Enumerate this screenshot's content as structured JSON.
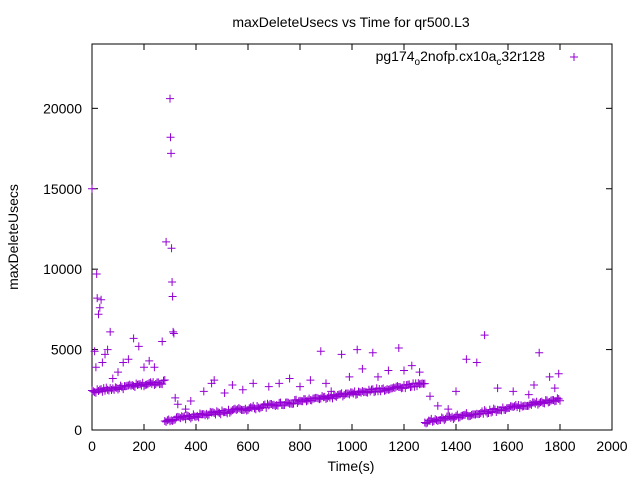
{
  "chart_data": {
    "type": "scatter",
    "title": "maxDeleteUsecs vs Time for qr500.L3",
    "xlabel": "Time(s)",
    "ylabel": "maxDeleteUsecs",
    "xlim": [
      0,
      2000
    ],
    "ylim": [
      0,
      24000
    ],
    "x_ticks": [
      "0",
      "200",
      "400",
      "600",
      "800",
      "1000",
      "1200",
      "1400",
      "1600",
      "1800",
      "2000"
    ],
    "y_ticks": [
      "0",
      "5000",
      "10000",
      "15000",
      "20000"
    ],
    "grid": false,
    "legend_position": "top-right",
    "legend": {
      "base": "pg174",
      "sub1": "o",
      "mid": "2nofp.cx10a",
      "sub2": "c",
      "tail": "32r128"
    },
    "marker": "+",
    "color": "#9400d3",
    "series": [
      {
        "name": "pg174_o2nofp.cx10a_c32r128",
        "trend": [
          {
            "x": [
              0,
              280
            ],
            "y": [
              2400,
              3000
            ]
          },
          {
            "x": [
              280,
              1280
            ],
            "y": [
              600,
              2900
            ]
          },
          {
            "x": [
              1280,
              1800
            ],
            "y": [
              500,
              1900
            ]
          }
        ],
        "outliers": [
          {
            "x": 0,
            "y": 15000
          },
          {
            "x": 10,
            "y": 4900
          },
          {
            "x": 15,
            "y": 3900
          },
          {
            "x": 18,
            "y": 9700
          },
          {
            "x": 20,
            "y": 8200
          },
          {
            "x": 25,
            "y": 7200
          },
          {
            "x": 30,
            "y": 7600
          },
          {
            "x": 35,
            "y": 8100
          },
          {
            "x": 40,
            "y": 4200
          },
          {
            "x": 50,
            "y": 4700
          },
          {
            "x": 60,
            "y": 5000
          },
          {
            "x": 70,
            "y": 6100
          },
          {
            "x": 80,
            "y": 3200
          },
          {
            "x": 100,
            "y": 3600
          },
          {
            "x": 120,
            "y": 4200
          },
          {
            "x": 140,
            "y": 4400
          },
          {
            "x": 160,
            "y": 5700
          },
          {
            "x": 180,
            "y": 5200
          },
          {
            "x": 200,
            "y": 3900
          },
          {
            "x": 220,
            "y": 4300
          },
          {
            "x": 240,
            "y": 3900
          },
          {
            "x": 270,
            "y": 5500
          },
          {
            "x": 285,
            "y": 11700
          },
          {
            "x": 300,
            "y": 20600
          },
          {
            "x": 302,
            "y": 18200
          },
          {
            "x": 304,
            "y": 17200
          },
          {
            "x": 306,
            "y": 11300
          },
          {
            "x": 308,
            "y": 9200
          },
          {
            "x": 310,
            "y": 8300
          },
          {
            "x": 312,
            "y": 6100
          },
          {
            "x": 315,
            "y": 6000
          },
          {
            "x": 320,
            "y": 2000
          },
          {
            "x": 330,
            "y": 1600
          },
          {
            "x": 360,
            "y": 1300
          },
          {
            "x": 380,
            "y": 1800
          },
          {
            "x": 430,
            "y": 2400
          },
          {
            "x": 460,
            "y": 2900
          },
          {
            "x": 470,
            "y": 3100
          },
          {
            "x": 510,
            "y": 2300
          },
          {
            "x": 540,
            "y": 2800
          },
          {
            "x": 580,
            "y": 2500
          },
          {
            "x": 620,
            "y": 2900
          },
          {
            "x": 680,
            "y": 2700
          },
          {
            "x": 720,
            "y": 2900
          },
          {
            "x": 760,
            "y": 3200
          },
          {
            "x": 800,
            "y": 2700
          },
          {
            "x": 840,
            "y": 3100
          },
          {
            "x": 880,
            "y": 4900
          },
          {
            "x": 900,
            "y": 2900
          },
          {
            "x": 920,
            "y": 2400
          },
          {
            "x": 960,
            "y": 4700
          },
          {
            "x": 990,
            "y": 3300
          },
          {
            "x": 1020,
            "y": 5000
          },
          {
            "x": 1040,
            "y": 3800
          },
          {
            "x": 1080,
            "y": 4800
          },
          {
            "x": 1100,
            "y": 3300
          },
          {
            "x": 1140,
            "y": 3700
          },
          {
            "x": 1180,
            "y": 5100
          },
          {
            "x": 1200,
            "y": 3700
          },
          {
            "x": 1230,
            "y": 4000
          },
          {
            "x": 1260,
            "y": 3600
          },
          {
            "x": 1300,
            "y": 2100
          },
          {
            "x": 1330,
            "y": 1500
          },
          {
            "x": 1370,
            "y": 1300
          },
          {
            "x": 1400,
            "y": 2400
          },
          {
            "x": 1440,
            "y": 4400
          },
          {
            "x": 1480,
            "y": 4200
          },
          {
            "x": 1510,
            "y": 5900
          },
          {
            "x": 1560,
            "y": 2600
          },
          {
            "x": 1620,
            "y": 2400
          },
          {
            "x": 1680,
            "y": 2200
          },
          {
            "x": 1700,
            "y": 2800
          },
          {
            "x": 1720,
            "y": 4800
          },
          {
            "x": 1760,
            "y": 3300
          },
          {
            "x": 1780,
            "y": 2600
          },
          {
            "x": 1795,
            "y": 3500
          }
        ]
      }
    ]
  }
}
